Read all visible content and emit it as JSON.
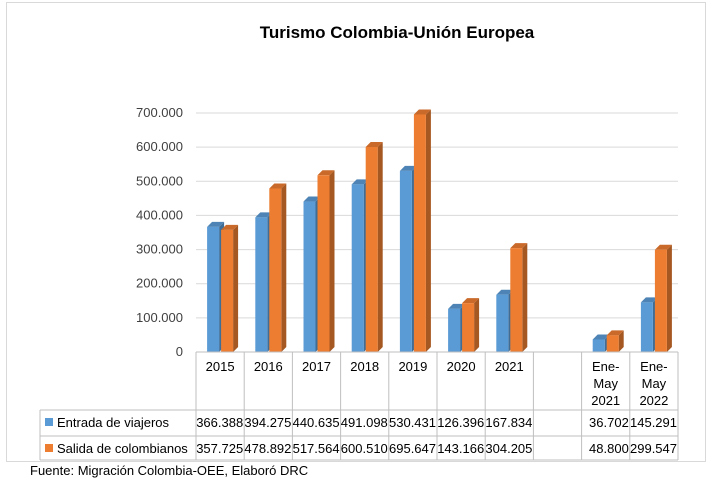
{
  "source": "Fuente: Migración Colombia-OEE, Elaboró DRC",
  "colors": {
    "entrada": "#5B9BD5",
    "salida": "#ED7D31",
    "entrada_dark": "#3A74AE",
    "salida_dark": "#B85A1A",
    "grid": "#d9d9d9"
  },
  "chart_data": {
    "type": "bar",
    "title": "Turismo Colombia-Unión Europea",
    "xlabel": "",
    "ylabel": "",
    "ylim": [
      0,
      700000
    ],
    "y_ticks": [
      {
        "value": 0,
        "label": "0"
      },
      {
        "value": 100000,
        "label": "100.000"
      },
      {
        "value": 200000,
        "label": "200.000"
      },
      {
        "value": 300000,
        "label": "300.000"
      },
      {
        "value": 400000,
        "label": "400.000"
      },
      {
        "value": 500000,
        "label": "500.000"
      },
      {
        "value": 600000,
        "label": "600.000"
      },
      {
        "value": 700000,
        "label": "700.000"
      }
    ],
    "categories": [
      {
        "lines": [
          "2015"
        ]
      },
      {
        "lines": [
          "2016"
        ]
      },
      {
        "lines": [
          "2017"
        ]
      },
      {
        "lines": [
          "2018"
        ]
      },
      {
        "lines": [
          "2019"
        ]
      },
      {
        "lines": [
          "2020"
        ]
      },
      {
        "lines": [
          "2021"
        ]
      },
      {
        "lines": [
          ""
        ]
      },
      {
        "lines": [
          "Ene-",
          "May",
          "2021"
        ]
      },
      {
        "lines": [
          "Ene-",
          "May",
          "2022"
        ]
      }
    ],
    "series": [
      {
        "name": "Entrada de viajeros",
        "color": "#5B9BD5",
        "values": [
          366388,
          394275,
          440635,
          491098,
          530431,
          126396,
          167834,
          null,
          36702,
          145291
        ],
        "labels": [
          "366.388",
          "394.275",
          "440.635",
          "491.098",
          "530.431",
          "126.396",
          "167.834",
          "",
          "36.702",
          "145.291"
        ]
      },
      {
        "name": "Salida de colombianos",
        "color": "#ED7D31",
        "values": [
          357725,
          478892,
          517564,
          600510,
          695647,
          143166,
          304205,
          null,
          48800,
          299547
        ],
        "labels": [
          "357.725",
          "478.892",
          "517.564",
          "600.510",
          "695.647",
          "143.166",
          "304.205",
          "",
          "48.800",
          "299.547"
        ]
      }
    ],
    "legend": "data-table"
  }
}
